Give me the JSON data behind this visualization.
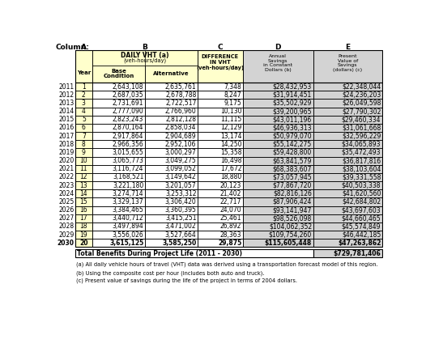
{
  "years": [
    2011,
    2012,
    2013,
    2014,
    2015,
    2016,
    2017,
    2018,
    2019,
    2020,
    2021,
    2022,
    2023,
    2024,
    2025,
    2026,
    2027,
    2028,
    2029,
    2030
  ],
  "row_nums": [
    1,
    2,
    3,
    4,
    5,
    6,
    7,
    8,
    9,
    10,
    11,
    12,
    13,
    14,
    15,
    16,
    17,
    18,
    19,
    20
  ],
  "base": [
    2643108,
    2687035,
    2731691,
    2777090,
    2823243,
    2870164,
    2917864,
    2966356,
    3015655,
    3065773,
    3116724,
    3168521,
    3221180,
    3274714,
    3329137,
    3384465,
    3440712,
    3497894,
    3556026,
    3615125
  ],
  "alt": [
    2635761,
    2678788,
    2722517,
    2766960,
    2812128,
    2858034,
    2904689,
    2952106,
    3000297,
    3049275,
    3099052,
    3149642,
    3201057,
    3253312,
    3306420,
    3360395,
    3415251,
    3471002,
    3527664,
    3585250
  ],
  "diff": [
    7348,
    8247,
    9175,
    10130,
    11115,
    12129,
    13174,
    14250,
    15358,
    16498,
    17672,
    18880,
    20123,
    21402,
    22717,
    24070,
    25461,
    26892,
    28363,
    29875
  ],
  "annual": [
    "$28,432,953",
    "$31,914,451",
    "$35,502,929",
    "$39,200,965",
    "$43,011,196",
    "$46,936,313",
    "$50,979,070",
    "$55,142,275",
    "$59,428,800",
    "$63,841,579",
    "$68,383,607",
    "$73,057,945",
    "$77,867,720",
    "$82,816,126",
    "$87,906,424",
    "$93,141,947",
    "$98,526,098",
    "$104,062,352",
    "$109,754,260",
    "$115,605,448"
  ],
  "pv": [
    "$22,348,044",
    "$24,236,203",
    "$26,049,598",
    "$27,790,302",
    "$29,460,334",
    "$31,061,668",
    "$32,596,229",
    "$34,065,893",
    "$35,472,493",
    "$36,817,816",
    "$38,103,604",
    "$39,331,558",
    "$40,503,338",
    "$41,620,560",
    "$42,684,802",
    "$43,697,603",
    "$44,660,465",
    "$45,574,849",
    "$46,442,185",
    "$47,263,862"
  ],
  "total_label": "Total Benefits During Project Life (2011 - 2030)",
  "total_value": "$729,781,406",
  "footnote_a": "(a) All daily vehicle hours of travel (VHT) data was derived using a transportation forecast model of this region.",
  "footnote_b": "(b) Using the composite cost per hour (includes both auto and truck).",
  "footnote_c": "(c) Present value of savings during the life of the project in terms of 2004 dollars.",
  "bg_yellow": "#FFFFCC",
  "bg_lightgray": "#D3D3D3",
  "bg_white": "#FFFFFF"
}
